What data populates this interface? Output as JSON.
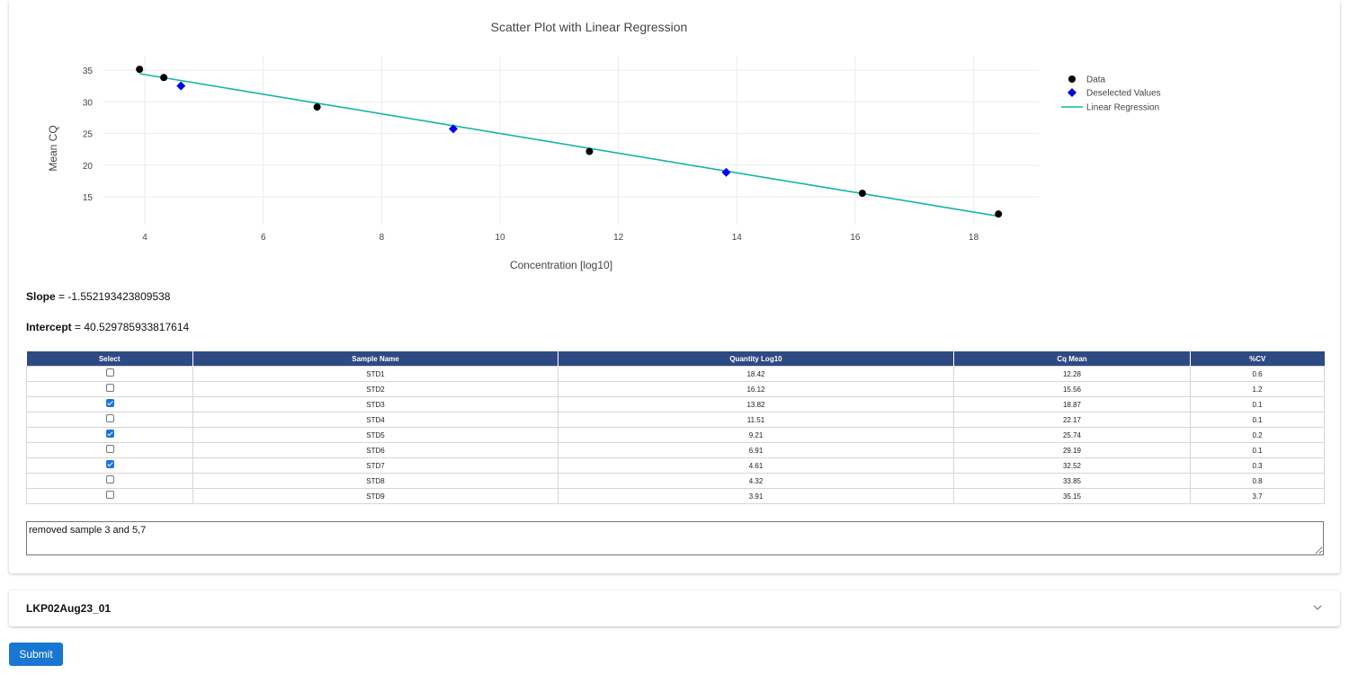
{
  "chart_data": {
    "type": "scatter",
    "title": "Scatter Plot with Linear Regression",
    "xlabel": "Concentration [log10]",
    "ylabel": "Mean CQ",
    "xlim": [
      3.3,
      19.1
    ],
    "ylim": [
      10.6,
      37.3
    ],
    "xticks": [
      4,
      6,
      8,
      10,
      12,
      14,
      16,
      18
    ],
    "yticks": [
      15,
      20,
      25,
      30,
      35
    ],
    "grid": true,
    "legend_position": "top-right",
    "series": [
      {
        "name": "Data",
        "marker": "circle",
        "color": "#000000",
        "points": [
          [
            18.42,
            12.28
          ],
          [
            16.12,
            15.56
          ],
          [
            11.51,
            22.17
          ],
          [
            6.91,
            29.19
          ],
          [
            4.32,
            33.85
          ],
          [
            3.91,
            35.15
          ]
        ]
      },
      {
        "name": "Deselected Values",
        "marker": "diamond",
        "color": "#0000ee",
        "points": [
          [
            13.82,
            18.87
          ],
          [
            9.21,
            25.74
          ],
          [
            4.61,
            32.52
          ]
        ]
      },
      {
        "name": "Linear Regression",
        "marker": "line",
        "color": "#17b3a8",
        "slope": -1.552193423809538,
        "intercept": 40.529785933817614,
        "x_range": [
          3.91,
          18.42
        ]
      }
    ]
  },
  "stats": {
    "slope_label": "Slope",
    "slope_value": "= -1.552193423809538",
    "intercept_label": "Intercept",
    "intercept_value": "= 40.529785933817614"
  },
  "table": {
    "headers": [
      "Select",
      "Sample Name",
      "Quantity Log10",
      "Cq Mean",
      "%CV"
    ],
    "rows": [
      {
        "checked": false,
        "name": "STD1",
        "qty": "18.42",
        "cq": "12.28",
        "cv": "0.6"
      },
      {
        "checked": false,
        "name": "STD2",
        "qty": "16.12",
        "cq": "15.56",
        "cv": "1.2"
      },
      {
        "checked": true,
        "name": "STD3",
        "qty": "13.82",
        "cq": "18.87",
        "cv": "0.1"
      },
      {
        "checked": false,
        "name": "STD4",
        "qty": "11.51",
        "cq": "22.17",
        "cv": "0.1"
      },
      {
        "checked": true,
        "name": "STD5",
        "qty": "9.21",
        "cq": "25.74",
        "cv": "0.2"
      },
      {
        "checked": false,
        "name": "STD6",
        "qty": "6.91",
        "cq": "29.19",
        "cv": "0.1"
      },
      {
        "checked": true,
        "name": "STD7",
        "qty": "4.61",
        "cq": "32.52",
        "cv": "0.3"
      },
      {
        "checked": false,
        "name": "STD8",
        "qty": "4.32",
        "cq": "33.85",
        "cv": "0.8"
      },
      {
        "checked": false,
        "name": "STD9",
        "qty": "3.91",
        "cq": "35.15",
        "cv": "3.7"
      }
    ]
  },
  "notes": {
    "value": "removed sample 3 and 5,7"
  },
  "accordion": {
    "title": "LKP02Aug23_01",
    "icon": "chevron-down-icon"
  },
  "submit": {
    "label": "Submit",
    "color": "#1976d2"
  }
}
